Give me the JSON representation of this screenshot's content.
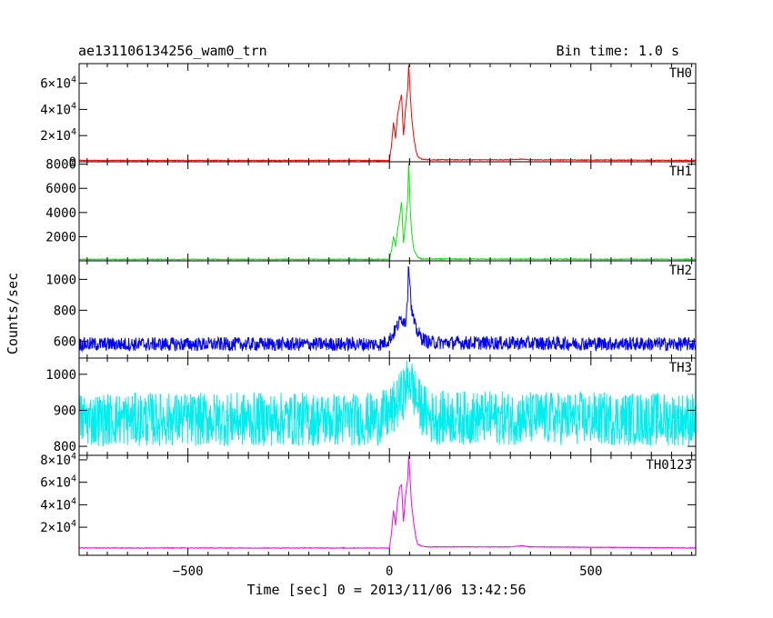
{
  "header": {
    "title": "ae131106134256_wam0_trn",
    "bin_time": "Bin time: 1.0 s"
  },
  "chart_data": {
    "type": "line",
    "title": "ae131106134256_wam0_trn",
    "xlabel": "Time [sec] 0 = 2013/11/06 13:42:56",
    "ylabel": "Counts/sec",
    "xlim": [
      -770,
      760
    ],
    "x_ticks": [
      -500,
      0,
      500
    ],
    "x_tick_labels": [
      "−500",
      "0",
      "500"
    ],
    "grid": false,
    "panels": [
      {
        "name": "TH0",
        "color": "#ff0000",
        "ylim": [
          0,
          75000
        ],
        "y_ticks": [
          0,
          20000,
          40000,
          60000
        ],
        "y_tick_labels": [
          {
            "mantissa": "0",
            "exp": ""
          },
          {
            "mantissa": "2×10",
            "exp": "4"
          },
          {
            "mantissa": "4×10",
            "exp": "4"
          },
          {
            "mantissa": "6×10",
            "exp": "4"
          }
        ],
        "baseline": 1000,
        "noise": 300,
        "profile": [
          [
            -770,
            1000
          ],
          [
            0,
            1000
          ],
          [
            5,
            12000
          ],
          [
            10,
            30000
          ],
          [
            15,
            18000
          ],
          [
            20,
            35000
          ],
          [
            25,
            45000
          ],
          [
            30,
            51000
          ],
          [
            35,
            20000
          ],
          [
            40,
            40000
          ],
          [
            45,
            55000
          ],
          [
            48,
            74000
          ],
          [
            52,
            50000
          ],
          [
            55,
            35000
          ],
          [
            60,
            20000
          ],
          [
            65,
            10000
          ],
          [
            70,
            4000
          ],
          [
            80,
            2000
          ],
          [
            100,
            1500
          ],
          [
            300,
            1500
          ],
          [
            330,
            2000
          ],
          [
            350,
            1500
          ],
          [
            760,
            1000
          ]
        ]
      },
      {
        "name": "TH1",
        "color": "#00ee00",
        "ylim": [
          0,
          8200
        ],
        "y_ticks": [
          2000,
          4000,
          6000,
          8000
        ],
        "y_tick_labels": [
          {
            "mantissa": "2000",
            "exp": ""
          },
          {
            "mantissa": "4000",
            "exp": ""
          },
          {
            "mantissa": "6000",
            "exp": ""
          },
          {
            "mantissa": "8000",
            "exp": ""
          }
        ],
        "baseline": 120,
        "noise": 40,
        "profile": [
          [
            -770,
            120
          ],
          [
            0,
            120
          ],
          [
            5,
            800
          ],
          [
            10,
            2000
          ],
          [
            15,
            1200
          ],
          [
            20,
            2500
          ],
          [
            25,
            3500
          ],
          [
            30,
            4900
          ],
          [
            35,
            1500
          ],
          [
            40,
            3000
          ],
          [
            45,
            5000
          ],
          [
            48,
            8100
          ],
          [
            52,
            4000
          ],
          [
            55,
            2500
          ],
          [
            60,
            1000
          ],
          [
            70,
            300
          ],
          [
            80,
            150
          ],
          [
            760,
            120
          ]
        ]
      },
      {
        "name": "TH2",
        "color": "#0000ff",
        "ylim": [
          490,
          1120
        ],
        "y_ticks": [
          600,
          800,
          1000
        ],
        "y_tick_labels": [
          {
            "mantissa": "600",
            "exp": ""
          },
          {
            "mantissa": "800",
            "exp": ""
          },
          {
            "mantissa": "1000",
            "exp": ""
          }
        ],
        "baseline": 580,
        "noise": 45,
        "profile": [
          [
            -770,
            580
          ],
          [
            -20,
            580
          ],
          [
            0,
            610
          ],
          [
            10,
            650
          ],
          [
            20,
            700
          ],
          [
            30,
            750
          ],
          [
            40,
            720
          ],
          [
            45,
            900
          ],
          [
            48,
            1110
          ],
          [
            55,
            800
          ],
          [
            65,
            680
          ],
          [
            80,
            620
          ],
          [
            100,
            590
          ],
          [
            760,
            580
          ]
        ]
      },
      {
        "name": "TH3",
        "color": "#00eeee",
        "ylim": [
          775,
          1045
        ],
        "y_ticks": [
          800,
          900,
          1000
        ],
        "y_tick_labels": [
          {
            "mantissa": "800",
            "exp": ""
          },
          {
            "mantissa": "900",
            "exp": ""
          },
          {
            "mantissa": "1000",
            "exp": ""
          }
        ],
        "baseline": 875,
        "noise": 75,
        "profile": [
          [
            -770,
            875
          ],
          [
            -30,
            875
          ],
          [
            0,
            890
          ],
          [
            20,
            920
          ],
          [
            40,
            960
          ],
          [
            50,
            990
          ],
          [
            70,
            920
          ],
          [
            100,
            880
          ],
          [
            760,
            875
          ]
        ]
      },
      {
        "name": "TH0123",
        "color": "#ff00ff",
        "ylim": [
          -5000,
          84000
        ],
        "y_ticks": [
          20000,
          40000,
          60000,
          80000
        ],
        "y_tick_labels": [
          {
            "mantissa": "2×10",
            "exp": "4"
          },
          {
            "mantissa": "4×10",
            "exp": "4"
          },
          {
            "mantissa": "6×10",
            "exp": "4"
          },
          {
            "mantissa": "8×10",
            "exp": "4"
          }
        ],
        "baseline": 1500,
        "noise": 300,
        "profile": [
          [
            -770,
            1500
          ],
          [
            0,
            1500
          ],
          [
            5,
            14000
          ],
          [
            10,
            35000
          ],
          [
            15,
            22000
          ],
          [
            20,
            42000
          ],
          [
            25,
            55000
          ],
          [
            30,
            58000
          ],
          [
            35,
            25000
          ],
          [
            40,
            48000
          ],
          [
            45,
            62000
          ],
          [
            48,
            83000
          ],
          [
            52,
            58000
          ],
          [
            55,
            40000
          ],
          [
            60,
            25000
          ],
          [
            65,
            12000
          ],
          [
            70,
            5000
          ],
          [
            80,
            3000
          ],
          [
            100,
            2500
          ],
          [
            300,
            2500
          ],
          [
            330,
            3500
          ],
          [
            350,
            2500
          ],
          [
            760,
            1500
          ]
        ]
      }
    ]
  }
}
